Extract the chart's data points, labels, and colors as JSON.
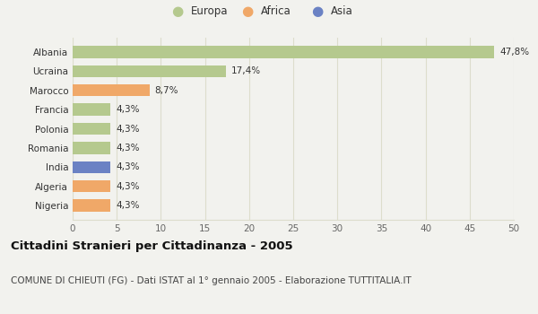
{
  "title": "Cittadini Stranieri per Cittadinanza - 2005",
  "subtitle": "COMUNE DI CHIEUTI (FG) - Dati ISTAT al 1° gennaio 2005 - Elaborazione TUTTITALIA.IT",
  "categories": [
    "Albania",
    "Ucraina",
    "Marocco",
    "Francia",
    "Polonia",
    "Romania",
    "India",
    "Algeria",
    "Nigeria"
  ],
  "values": [
    47.8,
    17.4,
    8.7,
    4.3,
    4.3,
    4.3,
    4.3,
    4.3,
    4.3
  ],
  "labels": [
    "47,8%",
    "17,4%",
    "8,7%",
    "4,3%",
    "4,3%",
    "4,3%",
    "4,3%",
    "4,3%",
    "4,3%"
  ],
  "colors": [
    "#b5c98e",
    "#b5c98e",
    "#f0a868",
    "#b5c98e",
    "#b5c98e",
    "#b5c98e",
    "#6b82c4",
    "#f0a868",
    "#f0a868"
  ],
  "legend": [
    {
      "label": "Europa",
      "color": "#b5c98e"
    },
    {
      "label": "Africa",
      "color": "#f0a868"
    },
    {
      "label": "Asia",
      "color": "#6b82c4"
    }
  ],
  "xlim": [
    0,
    50
  ],
  "xticks": [
    0,
    5,
    10,
    15,
    20,
    25,
    30,
    35,
    40,
    45,
    50
  ],
  "background_color": "#f2f2ee",
  "grid_color": "#ddddcc",
  "title_fontsize": 9.5,
  "subtitle_fontsize": 7.5,
  "label_fontsize": 7.5,
  "tick_fontsize": 7.5,
  "bar_label_fontsize": 7.5
}
